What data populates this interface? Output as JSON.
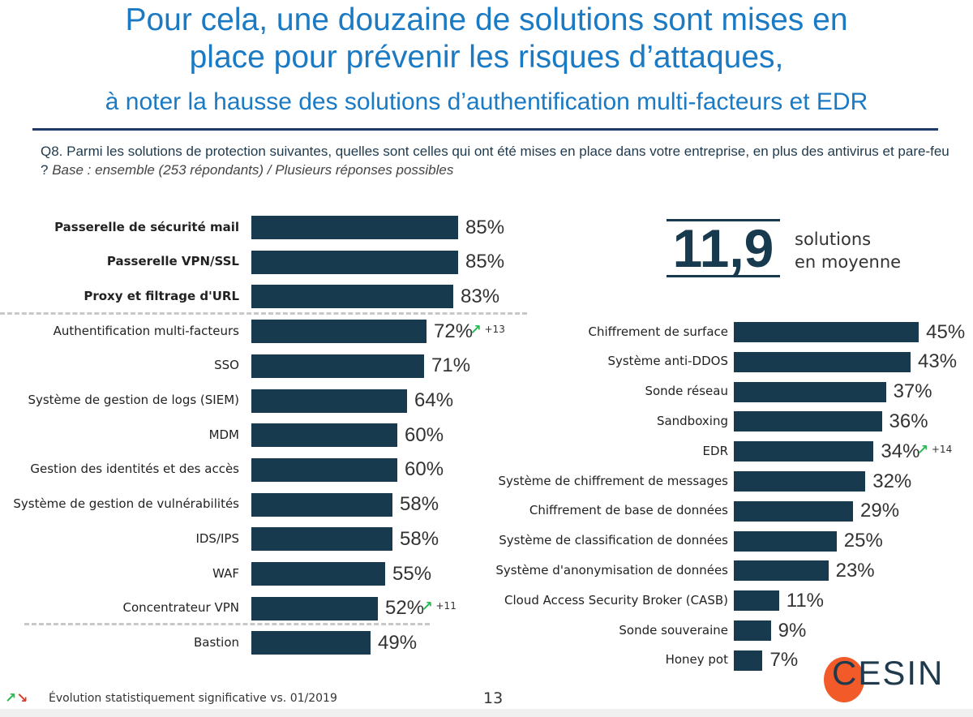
{
  "title": {
    "line1": "Pour cela, une douzaine de solutions sont mises en",
    "line2": "place pour prévenir les risques d’attaques,",
    "line3": "à noter la hausse des solutions d’authentification multi-facteurs et EDR"
  },
  "question": {
    "text": "Q8. Parmi les solutions de protection suivantes, quelles sont celles qui ont été mises en place dans votre entreprise, en plus des antivirus et pare-feu ?",
    "base": "Base : ensemble (253 répondants) / Plusieurs réponses possibles"
  },
  "summary": {
    "value": "11,9",
    "label1": "solutions",
    "label2": "en moyenne"
  },
  "colors": {
    "bar": "#173a4f",
    "title": "#1a7ac4",
    "up": "#2bbb55",
    "down": "#e03a2a"
  },
  "chart_data": [
    {
      "type": "bar",
      "orientation": "horizontal",
      "unit": "%",
      "xlim": [
        0,
        100
      ],
      "categories": [
        "Passerelle de sécurité mail",
        "Passerelle VPN/SSL",
        "Proxy et filtrage d'URL",
        "Authentification multi-facteurs",
        "SSO",
        "Système de gestion de logs (SIEM)",
        "MDM",
        "Gestion des identités et des accès",
        "Système de gestion de vulnérabilités",
        "IDS/IPS",
        "WAF",
        "Concentrateur VPN",
        "Bastion"
      ],
      "values": [
        85,
        85,
        83,
        72,
        71,
        64,
        60,
        60,
        58,
        58,
        55,
        52,
        49
      ],
      "labels": [
        "85%",
        "85%",
        "83%",
        "72%",
        "71%",
        "64%",
        "60%",
        "60%",
        "58%",
        "58%",
        "55%",
        "52%",
        "49%"
      ],
      "bold": [
        true,
        true,
        true,
        false,
        false,
        false,
        false,
        false,
        false,
        false,
        false,
        false,
        false
      ],
      "annotations": [
        {
          "index": 3,
          "trend": "up",
          "text": "+13"
        },
        {
          "index": 11,
          "trend": "up",
          "text": "+11"
        }
      ]
    },
    {
      "type": "bar",
      "orientation": "horizontal",
      "unit": "%",
      "xlim": [
        0,
        100
      ],
      "categories": [
        "Chiffrement de surface",
        "Système anti-DDOS",
        "Sonde réseau",
        "Sandboxing",
        "EDR",
        "Système de chiffrement de messages",
        "Chiffrement de base de données",
        "Système de classification de données",
        "Système d'anonymisation de données",
        "Cloud Access Security Broker (CASB)",
        "Sonde souveraine",
        "Honey pot"
      ],
      "values": [
        45,
        43,
        37,
        36,
        34,
        32,
        29,
        25,
        23,
        11,
        9,
        7
      ],
      "labels": [
        "45%",
        "43%",
        "37%",
        "36%",
        "34%",
        "32%",
        "29%",
        "25%",
        "23%",
        "11%",
        "9%",
        "7%"
      ],
      "annotations": [
        {
          "index": 4,
          "trend": "up",
          "text": "+14"
        }
      ]
    }
  ],
  "legend": {
    "text": "Évolution statistiquement significative vs. 01/2019"
  },
  "page_number": "13",
  "logo": "CESIN"
}
